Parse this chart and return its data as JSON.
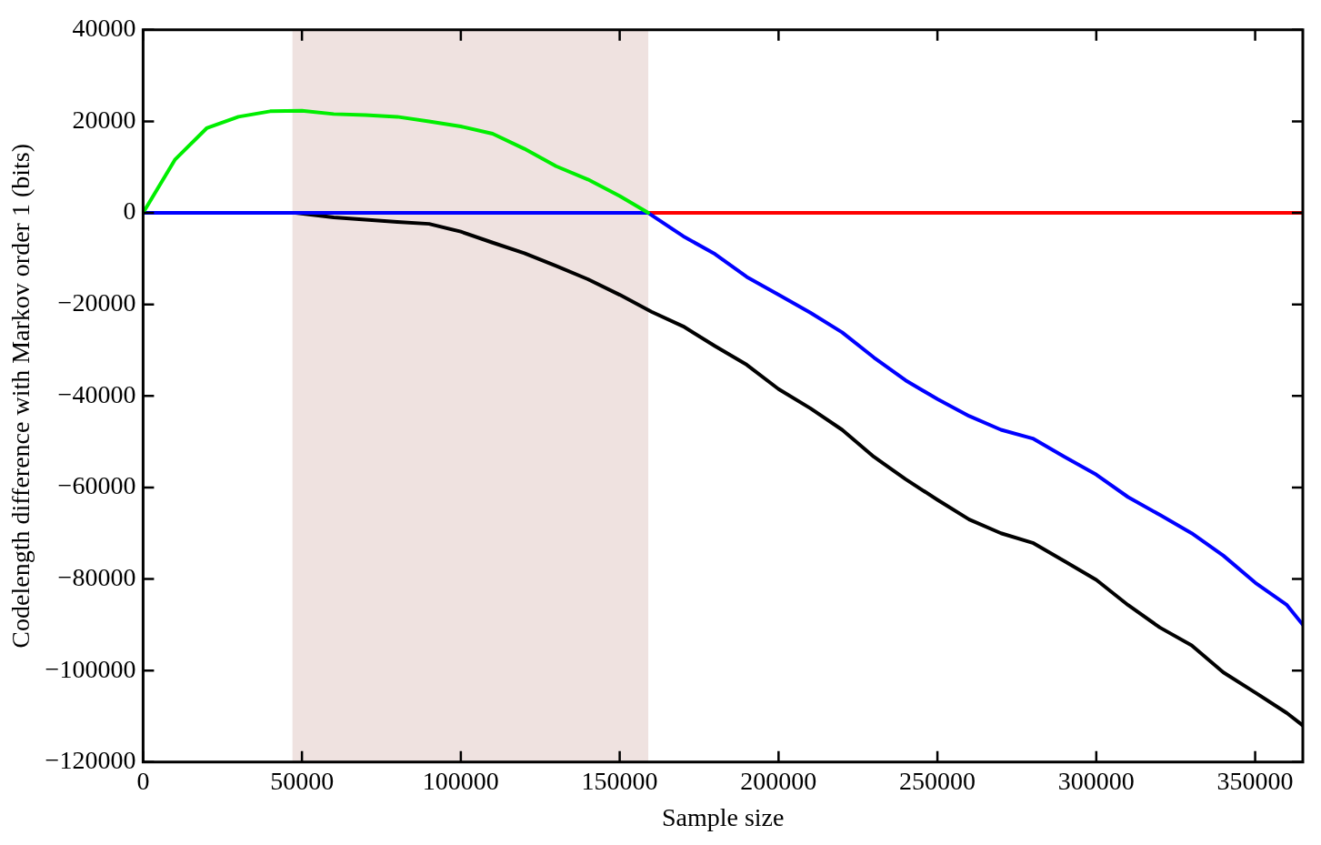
{
  "chart_data": {
    "type": "line",
    "xlabel": "Sample size",
    "ylabel": "Codelength difference with Markov order 1 (bits)",
    "xlim": [
      0,
      365000
    ],
    "xticks": [
      0,
      50000,
      100000,
      150000,
      200000,
      250000,
      300000,
      350000
    ],
    "ylim": [
      -120000,
      40000
    ],
    "yticks": [
      -120000,
      -100000,
      -80000,
      -60000,
      -40000,
      -20000,
      0,
      20000,
      40000
    ],
    "grid": false,
    "legend": false,
    "marker": "none",
    "line_style": "solid",
    "bands": [
      {
        "axis": "x",
        "from": 47000,
        "to": 159000,
        "color": "#efe2e0"
      }
    ],
    "series": [
      {
        "color": "#00ee00",
        "x": [
          0,
          10000,
          20000,
          30000,
          40000,
          50000,
          60000,
          70000,
          80000,
          90000,
          100000,
          110000,
          120000,
          130000,
          140000,
          150000,
          159000
        ],
        "values": [
          0,
          11600,
          18500,
          21000,
          22200,
          22300,
          21600,
          21400,
          21000,
          20000,
          18900,
          17300,
          14000,
          10200,
          7300,
          3700,
          0
        ]
      },
      {
        "color": "#0000ff",
        "x": [
          0,
          159000,
          170000,
          180000,
          190000,
          200000,
          210000,
          220000,
          230000,
          240000,
          250000,
          260000,
          270000,
          280000,
          290000,
          300000,
          310000,
          320000,
          330000,
          340000,
          350000,
          360000,
          365000
        ],
        "values": [
          0,
          0,
          -5100,
          -9000,
          -14000,
          -17900,
          -21800,
          -26100,
          -31600,
          -36600,
          -40700,
          -44400,
          -47400,
          -49300,
          -53300,
          -57200,
          -62100,
          -66000,
          -70000,
          -74900,
          -80800,
          -85700,
          -90000
        ]
      },
      {
        "color": "#ff0000",
        "x": [
          159000,
          365000
        ],
        "values": [
          0,
          0
        ]
      },
      {
        "color": "#000000",
        "x": [
          0,
          48000,
          60000,
          70000,
          80000,
          90000,
          100000,
          110000,
          120000,
          130000,
          140000,
          150000,
          160000,
          170000,
          180000,
          190000,
          200000,
          210000,
          220000,
          230000,
          240000,
          250000,
          260000,
          270000,
          280000,
          290000,
          300000,
          310000,
          320000,
          330000,
          340000,
          350000,
          360000,
          365000
        ],
        "values": [
          0,
          0,
          -1000,
          -1500,
          -2000,
          -2400,
          -4100,
          -6500,
          -8800,
          -11600,
          -14500,
          -17900,
          -21600,
          -24800,
          -29100,
          -33200,
          -38500,
          -42700,
          -47400,
          -53300,
          -58200,
          -62700,
          -67000,
          -70000,
          -72100,
          -76100,
          -80200,
          -85700,
          -90600,
          -94500,
          -100400,
          -104800,
          -109300,
          -112000
        ]
      }
    ]
  }
}
